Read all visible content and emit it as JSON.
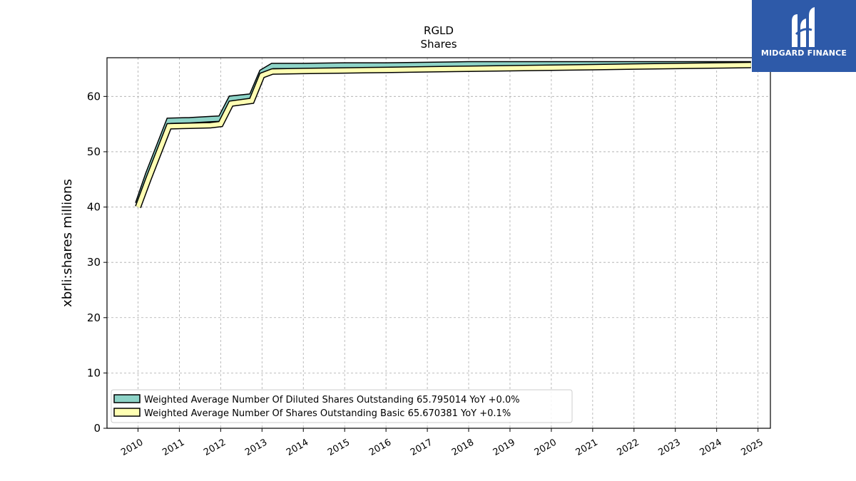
{
  "chart_data": {
    "type": "line",
    "title": "RGLD",
    "subtitle": "Shares",
    "xlabel": "",
    "ylabel": "xbrli:shares millions",
    "xlim": [
      2009.25,
      2025.3
    ],
    "ylim": [
      0,
      67
    ],
    "x_ticks": [
      "2010",
      "2011",
      "2012",
      "2013",
      "2014",
      "2015",
      "2016",
      "2017",
      "2018",
      "2019",
      "2020",
      "2021",
      "2022",
      "2023",
      "2024",
      "2025"
    ],
    "y_ticks": [
      0,
      10,
      20,
      30,
      40,
      50,
      60
    ],
    "grid": true,
    "legend_position": "lower-left",
    "series": [
      {
        "name": "Weighted Average Number Of Diluted Shares Outstanding",
        "legend_label": "Weighted Average Number Of Diluted Shares Outstanding  65.795014 YoY +0.0%",
        "color": "#8dd3c7",
        "x": [
          2010.0,
          2010.25,
          2010.75,
          2011.25,
          2011.75,
          2012.0,
          2012.25,
          2012.75,
          2013.0,
          2013.25,
          2014.0,
          2015.0,
          2016.0,
          2017.0,
          2018.0,
          2019.0,
          2020.0,
          2021.0,
          2022.0,
          2023.0,
          2024.0,
          2024.83
        ],
        "y": [
          40.6,
          46.0,
          55.6,
          55.7,
          55.9,
          56.0,
          59.6,
          60.0,
          64.4,
          65.5,
          65.5,
          65.6,
          65.6,
          65.7,
          65.8,
          65.8,
          65.8,
          65.8,
          65.8,
          65.8,
          65.8,
          65.8
        ]
      },
      {
        "name": "Weighted Average Number Of Shares Outstanding Basic",
        "legend_label": "Weighted Average Number Of Shares Outstanding Basic  65.670381 YoY +0.1%",
        "color": "#ffffb3",
        "x": [
          2010.0,
          2010.25,
          2010.75,
          2011.25,
          2011.75,
          2012.0,
          2012.25,
          2012.75,
          2013.0,
          2013.25,
          2014.0,
          2015.0,
          2016.0,
          2017.0,
          2018.0,
          2019.0,
          2020.0,
          2021.0,
          2022.0,
          2023.0,
          2024.0,
          2024.83
        ],
        "y": [
          40.0,
          45.0,
          54.6,
          54.7,
          54.8,
          55.0,
          58.7,
          59.2,
          63.8,
          64.5,
          64.6,
          64.7,
          64.8,
          64.9,
          65.0,
          65.1,
          65.2,
          65.3,
          65.4,
          65.5,
          65.6,
          65.67
        ]
      }
    ]
  },
  "logo": {
    "text": "MIDGARD FINANCE",
    "icon": "midgard-logo-icon",
    "background": "#2e5aa9"
  }
}
